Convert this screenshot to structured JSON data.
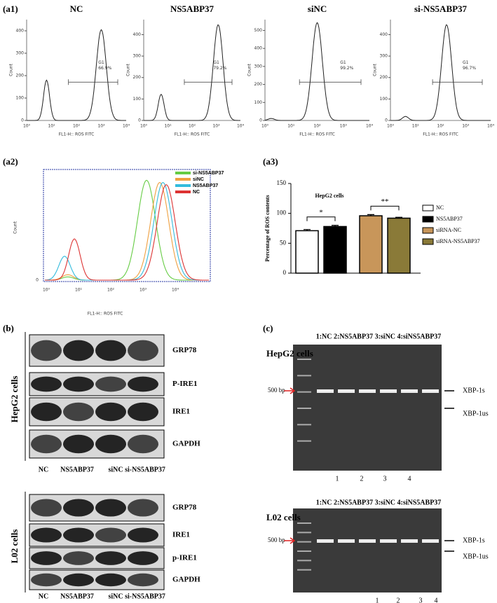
{
  "panel_a1": {
    "label": "(a1)",
    "xlabel": "FL1-H:: ROS FITC",
    "ylabel": "Count",
    "xtick_labels": [
      "10⁰",
      "10¹",
      "10²",
      "10³",
      "10⁴"
    ],
    "gate": "G1",
    "plots": [
      {
        "title": "NC",
        "percent": "66.9%",
        "ylim": [
          0,
          450
        ],
        "yticks": [
          0,
          100,
          200,
          300,
          400
        ]
      },
      {
        "title": "NS5ABP37",
        "percent": "79.2%",
        "ylim": [
          0,
          470
        ],
        "yticks": [
          0,
          100,
          200,
          300,
          400
        ]
      },
      {
        "title": "siNC",
        "percent": "99.2%",
        "ylim": [
          0,
          560
        ],
        "yticks": [
          0,
          100,
          200,
          300,
          400,
          500
        ]
      },
      {
        "title": "si-NS5ABP37",
        "percent": "96.7%",
        "ylim": [
          0,
          470
        ],
        "yticks": [
          0,
          100,
          200,
          300,
          400
        ]
      }
    ]
  },
  "panel_a2": {
    "label": "(a2)",
    "ylabel": "Count",
    "ytick": "0",
    "xlabel": "FL1-H:: ROS FITC",
    "xtick_labels": [
      "10⁰",
      "10¹",
      "10²",
      "10³",
      "10⁴"
    ],
    "series": [
      {
        "name": "si-NS5ABP37",
        "color": "#66cc44"
      },
      {
        "name": "siNC",
        "color": "#f0a040"
      },
      {
        "name": "NS5ABP37",
        "color": "#33bbdd"
      },
      {
        "name": "NC",
        "color": "#dd3333"
      }
    ]
  },
  "panel_a3": {
    "label": "(a3)",
    "type": "bar",
    "title": "HepG2 cells",
    "ylabel": "Percentage of ROS contents",
    "categories": [
      "NC",
      "NS5ABP37",
      "siRNA-NC",
      "siRNA-NS5ABP37"
    ],
    "values": [
      71,
      78,
      96,
      92
    ],
    "errors": [
      2,
      2,
      2,
      1.5
    ],
    "colors": [
      "#ffffff",
      "#000000",
      "#c8965a",
      "#8a7a38"
    ],
    "ylim": [
      0,
      150
    ],
    "yticks": [
      0,
      50,
      100,
      150
    ],
    "significance": [
      "*",
      "**"
    ]
  },
  "panel_b": {
    "label": "(b)",
    "hepg2": {
      "cell": "HepG2 cells",
      "bands": [
        "GRP78",
        "P-IRE1",
        "IRE1",
        "GAPDH"
      ],
      "lanes": [
        "NC",
        "NS5ABP37",
        "siNC",
        "si-NS5ABP37"
      ]
    },
    "l02": {
      "cell": "L02 cells",
      "bands": [
        "GRP78",
        "IRE1",
        "p-IRE1",
        "GAPDH"
      ],
      "lanes": [
        "NC",
        "NS5ABP37",
        "siNC",
        "si-NS5ABP37"
      ]
    }
  },
  "panel_c": {
    "label": "(c)",
    "hepg2": {
      "header": "1:NC  2:NS5ABP37  3:siNC  4:siNS5ABP37",
      "cell": "HepG2 cells",
      "marker": "500 bp",
      "bands": [
        "XBP-1s",
        "XBP-1us"
      ],
      "lanes": [
        "1",
        "2",
        "3",
        "4"
      ]
    },
    "l02": {
      "header": "1:NC  2:NS5ABP37  3:siNC  4:siNS5ABP37",
      "cell": "L02 cells",
      "marker": "500 bp",
      "bands": [
        "XBP-1s",
        "XBP-1us"
      ],
      "lanes": [
        "1",
        "2",
        "3",
        "4"
      ]
    }
  }
}
